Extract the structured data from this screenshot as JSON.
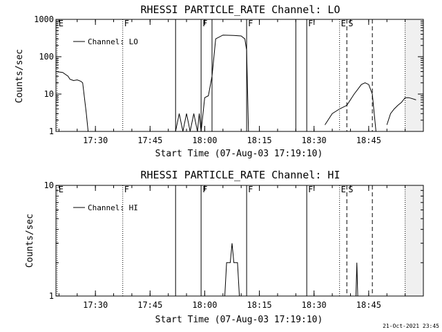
{
  "footer": {
    "timestamp": "21-Oct-2021 23:45"
  },
  "chart_data": [
    {
      "type": "line",
      "title": "RHESSI PARTICLE_RATE Channel: LO",
      "xlabel": "Start Time (07-Aug-03 17:19:10)",
      "ylabel": "Counts/sec",
      "y_scale": "log",
      "ylim": [
        1,
        1000
      ],
      "xlim": [
        "17:19:10",
        "19:00:00"
      ],
      "x_ticks": [
        "17:30",
        "17:45",
        "18:00",
        "18:15",
        "18:30",
        "18:45"
      ],
      "y_ticks": [
        "1",
        "10",
        "100",
        "1000"
      ],
      "legend": {
        "position": "top-left",
        "entries": [
          "Channel: LO"
        ]
      },
      "series": [
        {
          "name": "Channel: LO",
          "x": [
            "17:19:10",
            "17:21:00",
            "17:22:30",
            "17:23:00",
            "17:24:00",
            "17:25:00",
            "17:26:00",
            "17:26:30",
            "17:27:30",
            "17:28:00",
            "17:52:00",
            "17:53:00",
            "17:54:00",
            "17:55:00",
            "17:56:00",
            "17:57:00",
            "17:58:00",
            "17:58:30",
            "17:59:00",
            "18:00:00",
            "18:01:00",
            "18:02:00",
            "18:03:00",
            "18:05:00",
            "18:08:00",
            "18:10:00",
            "18:11:00",
            "18:11:30",
            "18:12:00",
            "18:33:00",
            "18:35:00",
            "18:37:00",
            "18:39:00",
            "18:41:00",
            "18:43:00",
            "18:44:00",
            "18:45:00",
            "18:46:00",
            "18:47:00",
            "18:50:00",
            "18:51:00",
            "18:52:00",
            "18:53:00",
            "18:54:00",
            "18:55:00",
            "18:56:00",
            "18:57:00",
            "18:58:00"
          ],
          "y": [
            40,
            38,
            30,
            25,
            23,
            24,
            22,
            20,
            3,
            1,
            1,
            3,
            1,
            3,
            1,
            3,
            1,
            3,
            1,
            8,
            9,
            30,
            300,
            380,
            370,
            360,
            300,
            150,
            1,
            1.5,
            3,
            4,
            5,
            10,
            18,
            20,
            18,
            10,
            1,
            1.5,
            3,
            4,
            5,
            6,
            8,
            8,
            7.5,
            7
          ],
          "segment_breaks_after": [
            9,
            28,
            38
          ]
        }
      ],
      "event_lines": [
        {
          "time": "17:19:30",
          "style": "dotted",
          "label": "E"
        },
        {
          "time": "17:37:30",
          "style": "dotted",
          "label": "F"
        },
        {
          "time": "17:52:00",
          "style": "solid",
          "label": ""
        },
        {
          "time": "17:59:00",
          "style": "solid",
          "label": "F"
        },
        {
          "time": "18:02:00",
          "style": "solid",
          "label": ""
        },
        {
          "time": "18:11:30",
          "style": "solid",
          "label": "F"
        },
        {
          "time": "18:25:00",
          "style": "solid",
          "label": ""
        },
        {
          "time": "18:28:00",
          "style": "solid",
          "label": "F"
        },
        {
          "time": "18:37:00",
          "style": "dotted",
          "label": "E"
        },
        {
          "time": "18:39:00",
          "style": "dashed",
          "label": "S"
        },
        {
          "time": "18:46:00",
          "style": "dashed",
          "label": ""
        },
        {
          "time": "18:55:00",
          "style": "dotted",
          "label": ""
        }
      ]
    },
    {
      "type": "line",
      "title": "RHESSI PARTICLE_RATE Channel: HI",
      "xlabel": "Start Time (07-Aug-03 17:19:10)",
      "ylabel": "Counts/sec",
      "y_scale": "log",
      "ylim": [
        1,
        10
      ],
      "xlim": [
        "17:19:10",
        "19:00:00"
      ],
      "x_ticks": [
        "17:30",
        "17:45",
        "18:00",
        "18:15",
        "18:30",
        "18:45"
      ],
      "y_ticks": [
        "1",
        "10"
      ],
      "legend": {
        "position": "top-left",
        "entries": [
          "Channel: HI"
        ]
      },
      "series": [
        {
          "name": "Channel: HI",
          "x": [
            "18:05:30",
            "18:06:00",
            "18:06:30",
            "18:07:00",
            "18:07:30",
            "18:08:00",
            "18:08:30",
            "18:09:00",
            "18:09:30",
            "18:41:30",
            "18:41:45",
            "18:42:00"
          ],
          "y": [
            1,
            2,
            2,
            2,
            3,
            2,
            2,
            2,
            1,
            1,
            2,
            1
          ],
          "segment_breaks_after": [
            8
          ]
        }
      ],
      "event_lines": [
        {
          "time": "17:19:30",
          "style": "dotted",
          "label": "E"
        },
        {
          "time": "17:37:30",
          "style": "dotted",
          "label": "F"
        },
        {
          "time": "17:52:00",
          "style": "solid",
          "label": ""
        },
        {
          "time": "17:59:00",
          "style": "solid",
          "label": "F"
        },
        {
          "time": "18:11:30",
          "style": "solid",
          "label": "F"
        },
        {
          "time": "18:28:00",
          "style": "solid",
          "label": "F"
        },
        {
          "time": "18:37:00",
          "style": "dotted",
          "label": "E"
        },
        {
          "time": "18:39:00",
          "style": "dashed",
          "label": "S"
        },
        {
          "time": "18:46:00",
          "style": "dashed",
          "label": ""
        },
        {
          "time": "18:55:00",
          "style": "dotted",
          "label": ""
        }
      ]
    }
  ]
}
